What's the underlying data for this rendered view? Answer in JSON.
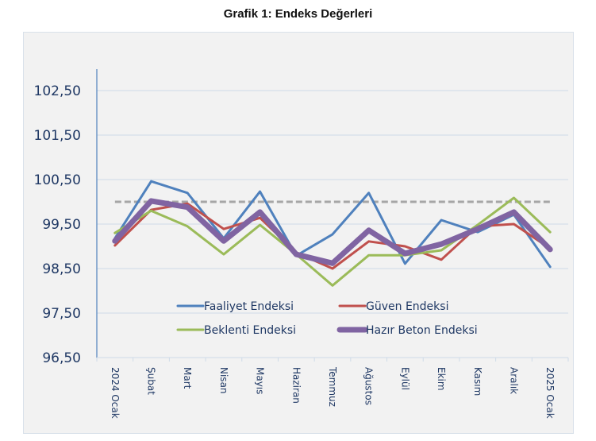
{
  "title": "Grafik 1: Endeks Değerleri",
  "chart_data": {
    "type": "line",
    "title": "Grafik 1: Endeks Değerleri",
    "xlabel": "",
    "ylabel": "",
    "ylim": [
      96.5,
      103.0
    ],
    "yticks": [
      96.5,
      97.5,
      98.5,
      99.5,
      100.5,
      101.5,
      102.5
    ],
    "ytick_labels": [
      "96,50",
      "97,50",
      "98,50",
      "99,50",
      "100,50",
      "101,50",
      "102,50"
    ],
    "grid": true,
    "legend_position": "bottom-center-inside",
    "categories": [
      "2024 Ocak",
      "Şubat",
      "Mart",
      "Nisan",
      "Mayıs",
      "Haziran",
      "Temmuz",
      "Ağustos",
      "Eylül",
      "Ekim",
      "Kasım",
      "Aralık",
      "2025 Ocak"
    ],
    "reference_line": {
      "value": 100.0,
      "style": "dashed",
      "color": "#a6a6a6"
    },
    "series": [
      {
        "name": "Faaliyet Endeksi",
        "color": "#4f81bd",
        "weight": "normal",
        "values": [
          99.18,
          100.46,
          100.2,
          99.18,
          100.23,
          98.79,
          99.27,
          100.2,
          98.61,
          99.59,
          99.32,
          99.71,
          98.54
        ]
      },
      {
        "name": "Güven Endeksi",
        "color": "#c0504d",
        "weight": "normal",
        "values": [
          99.02,
          99.82,
          99.96,
          99.39,
          99.64,
          98.86,
          98.5,
          99.11,
          99.0,
          98.7,
          99.45,
          99.5,
          98.95
        ]
      },
      {
        "name": "Beklenti Endeksi",
        "color": "#9bbb59",
        "weight": "normal",
        "values": [
          99.3,
          99.8,
          99.45,
          98.82,
          99.48,
          98.82,
          98.12,
          98.8,
          98.8,
          98.91,
          99.48,
          100.09,
          99.32
        ]
      },
      {
        "name": "Hazır Beton Endeksi",
        "color": "#8064a2",
        "weight": "bold",
        "values": [
          99.12,
          100.02,
          99.88,
          99.12,
          99.77,
          98.82,
          98.62,
          99.36,
          98.84,
          99.05,
          99.39,
          99.77,
          98.93
        ]
      }
    ]
  }
}
